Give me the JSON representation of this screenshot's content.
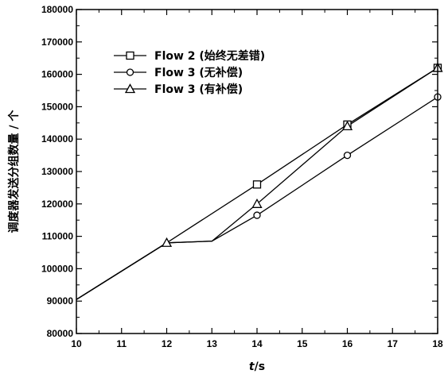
{
  "chart_data": {
    "type": "line",
    "title": "",
    "xlabel": "t/s",
    "xlabel_italic_part": "t",
    "xlabel_rest": "/s",
    "ylabel": "调度器发送分组数量 / 个",
    "xlim": [
      10,
      18
    ],
    "ylim": [
      80000,
      180000
    ],
    "x_ticks": [
      10,
      11,
      12,
      13,
      14,
      15,
      16,
      17,
      18
    ],
    "y_ticks": [
      80000,
      90000,
      100000,
      110000,
      120000,
      130000,
      140000,
      150000,
      160000,
      170000,
      180000
    ],
    "x_tick_labels": [
      "10",
      "11",
      "12",
      "13",
      "14",
      "15",
      "16",
      "17",
      "18"
    ],
    "y_tick_labels": [
      "80000",
      "90000",
      "100000",
      "110000",
      "120000",
      "130000",
      "140000",
      "150000",
      "160000",
      "170000",
      "180000"
    ],
    "grid": false,
    "legend_position": "top-left",
    "series": [
      {
        "name": "Flow 2 (始终无差错)",
        "marker": "square",
        "points": [
          [
            10,
            90500
          ],
          [
            12,
            108000
          ],
          [
            14,
            126000
          ],
          [
            16,
            144500
          ],
          [
            18,
            162000
          ]
        ],
        "marker_x": [
          14,
          16,
          18
        ]
      },
      {
        "name": "Flow 3 (无补偿)",
        "marker": "circle",
        "points": [
          [
            10,
            90500
          ],
          [
            12,
            108000
          ],
          [
            13,
            108500
          ],
          [
            14,
            116500
          ],
          [
            16,
            135000
          ],
          [
            18,
            153000
          ]
        ],
        "marker_x": [
          14,
          16,
          18
        ]
      },
      {
        "name": "Flow 3 (有补偿)",
        "marker": "triangle",
        "points": [
          [
            10,
            90500
          ],
          [
            12,
            108000
          ],
          [
            13,
            108500
          ],
          [
            14,
            120000
          ],
          [
            16,
            144000
          ],
          [
            18,
            162000
          ]
        ],
        "marker_x": [
          12,
          14,
          16,
          18
        ]
      }
    ]
  }
}
